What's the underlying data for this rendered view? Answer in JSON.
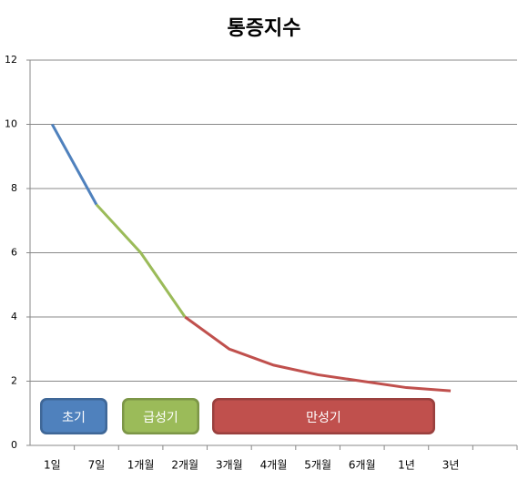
{
  "chart_data": {
    "type": "line",
    "title": "통증지수",
    "categories": [
      "1일",
      "7일",
      "1개월",
      "2개월",
      "3개월",
      "4개월",
      "5개월",
      "6개월",
      "1년",
      "3년",
      null
    ],
    "series": [
      {
        "name": "초기",
        "color": "#4f81bd",
        "values": [
          10,
          7.5,
          null,
          null,
          null,
          null,
          null,
          null,
          null,
          null,
          null
        ]
      },
      {
        "name": "급성기",
        "color": "#9bbb59",
        "values": [
          null,
          7.5,
          6,
          4,
          null,
          null,
          null,
          null,
          null,
          null,
          null
        ]
      },
      {
        "name": "만성기",
        "color": "#c0504d",
        "values": [
          null,
          null,
          null,
          4,
          3,
          2.5,
          2.2,
          2.0,
          1.8,
          1.7,
          null
        ]
      }
    ],
    "ylim": [
      0,
      12
    ],
    "yticks": [
      0,
      2,
      4,
      6,
      8,
      10,
      12
    ],
    "grid": true
  }
}
